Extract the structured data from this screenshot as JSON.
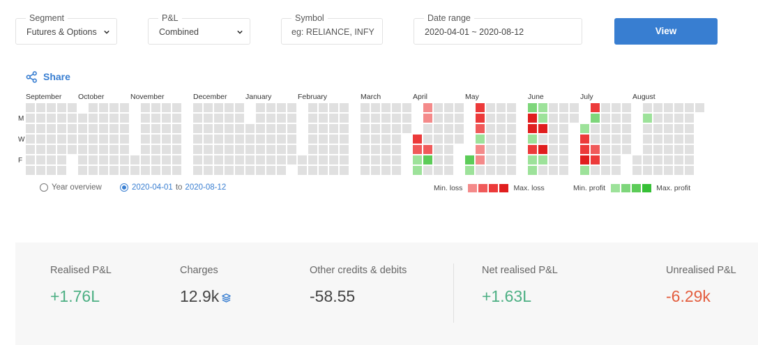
{
  "filters": {
    "segment": {
      "label": "Segment",
      "value": "Futures & Options"
    },
    "pnl": {
      "label": "P&L",
      "value": "Combined"
    },
    "symbol": {
      "label": "Symbol",
      "placeholder": "eg: RELIANCE, INFY",
      "value": ""
    },
    "date_range": {
      "label": "Date range",
      "value": "2020-04-01 ~ 2020-08-12"
    },
    "view_label": "View"
  },
  "share_label": "Share",
  "heatmap": {
    "months": [
      "September",
      "October",
      "November",
      "December",
      "January",
      "February",
      "March",
      "April",
      "May",
      "June",
      "July",
      "August"
    ],
    "day_labels": [
      "M",
      "W",
      "F"
    ],
    "colors": {
      "empty": "#e0e0e0",
      "loss": [
        "#f48a8a",
        "#f05a5a",
        "#ec3a3a",
        "#e01e1e"
      ],
      "profit": [
        "#9de29a",
        "#7ed67b",
        "#5ccc58",
        "#36c036"
      ]
    },
    "active_range": {
      "april": [
        [
          0,
          -1
        ],
        [
          0,
          -1
        ],
        [
          0,
          0
        ],
        [
          -3,
          0
        ],
        [
          -2,
          -2
        ],
        [
          1,
          3
        ],
        [
          1,
          0
        ]
      ],
      "may": [
        [
          -1,
          -3
        ],
        [
          1,
          -3
        ],
        [
          0,
          -2
        ],
        [
          -3,
          1
        ],
        [
          -3,
          -1
        ],
        [
          3,
          -1
        ],
        [
          1,
          0
        ]
      ],
      "june": [
        [
          2,
          1
        ],
        [
          -4,
          1
        ],
        [
          -4,
          -4
        ],
        [
          1,
          0
        ],
        [
          -3,
          -4
        ],
        [
          1,
          1
        ],
        [
          1,
          0
        ]
      ],
      "july": [
        [
          1,
          -3
        ],
        [
          0,
          2
        ],
        [
          1,
          0
        ],
        [
          -3,
          0
        ],
        [
          -3,
          -2
        ],
        [
          -4,
          -3
        ],
        [
          1,
          0
        ]
      ],
      "august": [
        [
          1,
          0
        ],
        [
          1,
          1
        ],
        [
          -1,
          0
        ],
        [
          0,
          0
        ],
        [
          0,
          0
        ],
        [
          0,
          0
        ],
        [
          0,
          0
        ]
      ]
    }
  },
  "range_selector": {
    "year_overview": "Year overview",
    "range_start": "2020-04-01",
    "range_to": "to",
    "range_end": "2020-08-12"
  },
  "legend": {
    "min_loss": "Min. loss",
    "max_loss": "Max. loss",
    "min_profit": "Min. profit",
    "max_profit": "Max. profit"
  },
  "summary": {
    "realised_pnl": {
      "label": "Realised P&L",
      "value": "+1.76L"
    },
    "charges": {
      "label": "Charges",
      "value": "12.9k"
    },
    "other": {
      "label": "Other credits & debits",
      "value": "-58.55"
    },
    "net_realised": {
      "label": "Net realised P&L",
      "value": "+1.63L"
    },
    "unrealised": {
      "label": "Unrealised P&L",
      "value": "-6.29k"
    }
  }
}
